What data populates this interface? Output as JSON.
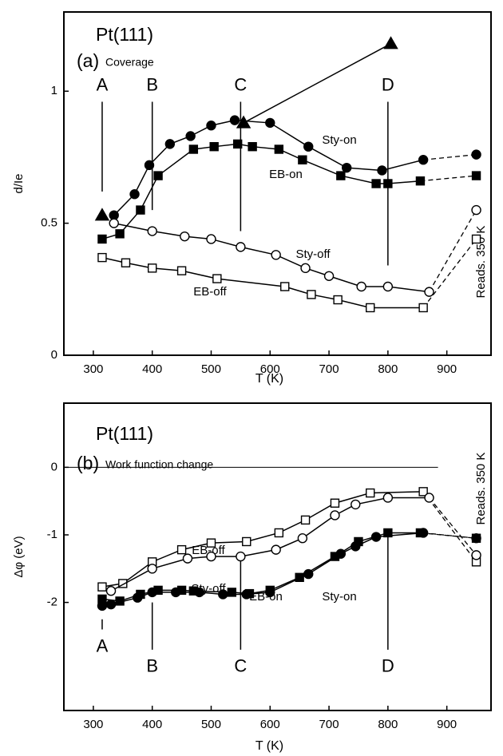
{
  "chart_data": [
    {
      "type": "line",
      "title": "Pt(111)",
      "panel": "(a)",
      "subtitle": "Coverage",
      "x_label": "T (K)",
      "y_label": "d/Ie",
      "note": "Reads. 350 K",
      "color": "#000000",
      "xlim": [
        250,
        975
      ],
      "ylim": [
        0,
        1.3
      ],
      "xticks": [
        300,
        400,
        500,
        600,
        700,
        800,
        900
      ],
      "yticks": [
        0,
        0.5,
        1
      ],
      "series": [
        {
          "name": "Sty-on",
          "marker": "circle-filled",
          "dashed_last": true,
          "x": [
            335,
            370,
            395,
            430,
            465,
            500,
            540,
            600,
            665,
            730,
            790,
            860,
            950
          ],
          "values": [
            0.53,
            0.61,
            0.72,
            0.8,
            0.83,
            0.87,
            0.89,
            0.88,
            0.79,
            0.71,
            0.7,
            0.74,
            0.76
          ]
        },
        {
          "name": "EB-on",
          "marker": "square-filled",
          "dashed_last": true,
          "x": [
            315,
            345,
            380,
            410,
            470,
            505,
            545,
            570,
            615,
            655,
            720,
            780,
            800,
            855,
            950
          ],
          "values": [
            0.44,
            0.46,
            0.55,
            0.68,
            0.78,
            0.79,
            0.8,
            0.79,
            0.78,
            0.74,
            0.68,
            0.65,
            0.65,
            0.66,
            0.68
          ]
        },
        {
          "name": "Sty-off",
          "marker": "circle-open",
          "dashed_last": true,
          "x": [
            335,
            400,
            455,
            500,
            550,
            610,
            660,
            700,
            755,
            800,
            870,
            950
          ],
          "values": [
            0.5,
            0.47,
            0.45,
            0.44,
            0.41,
            0.38,
            0.33,
            0.3,
            0.26,
            0.26,
            0.24,
            0.55
          ]
        },
        {
          "name": "EB-off",
          "marker": "square-open",
          "dashed_last": true,
          "x": [
            315,
            355,
            400,
            450,
            510,
            625,
            670,
            715,
            770,
            860,
            950
          ],
          "values": [
            0.37,
            0.35,
            0.33,
            0.32,
            0.29,
            0.26,
            0.23,
            0.21,
            0.18,
            0.18,
            0.44
          ]
        },
        {
          "marker": "triangle-filled",
          "line": false,
          "x": [
            315
          ],
          "values": [
            0.53
          ]
        },
        {
          "marker": "triangle-filled",
          "line": true,
          "x": [
            555,
            805
          ],
          "values": [
            0.88,
            1.18
          ]
        }
      ],
      "annotations": [
        {
          "label": "A",
          "x": 315,
          "y": [
            0.62,
            0.96
          ]
        },
        {
          "label": "B",
          "x": 400,
          "y": [
            0.55,
            0.96
          ]
        },
        {
          "label": "C",
          "x": 550,
          "y": [
            0.47,
            0.96
          ]
        },
        {
          "label": "D",
          "x": 800,
          "y": [
            0.34,
            0.96
          ]
        }
      ]
    },
    {
      "type": "line",
      "title": "Pt(111)",
      "panel": "(b)",
      "subtitle": "Work function change",
      "x_label": "T (K)",
      "y_label": "Δφ (eV)",
      "note": "Reads. 350 K",
      "color": "#000000",
      "xlim": [
        250,
        975
      ],
      "ylim": [
        -3.6,
        0.95
      ],
      "xticks": [
        300,
        400,
        500,
        600,
        700,
        800,
        900
      ],
      "yticks": [
        -2,
        -1,
        0
      ],
      "hlines": [
        {
          "y": 0,
          "x": [
            250,
            885
          ]
        }
      ],
      "series": [
        {
          "name": "EB-off",
          "marker": "square-open",
          "dashed_last": true,
          "x": [
            315,
            350,
            400,
            450,
            500,
            560,
            615,
            660,
            710,
            770,
            860,
            950
          ],
          "values": [
            -1.77,
            -1.72,
            -1.4,
            -1.22,
            -1.12,
            -1.1,
            -0.97,
            -0.78,
            -0.53,
            -0.38,
            -0.36,
            -1.4
          ]
        },
        {
          "name": "Sty-off",
          "marker": "circle-open",
          "dashed_last": true,
          "x": [
            330,
            400,
            460,
            500,
            550,
            610,
            655,
            710,
            745,
            800,
            870,
            950
          ],
          "values": [
            -1.83,
            -1.5,
            -1.35,
            -1.32,
            -1.32,
            -1.22,
            -1.05,
            -0.71,
            -0.55,
            -0.45,
            -0.45,
            -1.3
          ]
        },
        {
          "name": "Sty-on",
          "marker": "circle-filled",
          "dashed_last": true,
          "x": [
            315,
            330,
            375,
            400,
            440,
            480,
            520,
            560,
            600,
            665,
            720,
            745,
            780,
            860,
            950
          ],
          "values": [
            -2.05,
            -2.03,
            -1.93,
            -1.85,
            -1.85,
            -1.85,
            -1.88,
            -1.88,
            -1.85,
            -1.58,
            -1.28,
            -1.17,
            -1.03,
            -0.97,
            -1.05
          ]
        },
        {
          "name": "EB-on",
          "marker": "square-filled",
          "dashed_last": true,
          "x": [
            315,
            345,
            380,
            410,
            450,
            470,
            535,
            565,
            600,
            650,
            710,
            750,
            800,
            855,
            950
          ],
          "values": [
            -1.95,
            -1.98,
            -1.88,
            -1.82,
            -1.82,
            -1.83,
            -1.85,
            -1.87,
            -1.82,
            -1.63,
            -1.32,
            -1.1,
            -0.97,
            -0.97,
            -1.05
          ]
        }
      ],
      "annotations": [
        {
          "label": "A",
          "x": 315,
          "y": [
            -2.25,
            -2.4
          ]
        },
        {
          "label": "B",
          "x": 400,
          "y": [
            -2.0,
            -2.7
          ]
        },
        {
          "label": "C",
          "x": 550,
          "y": [
            -1.35,
            -2.7
          ]
        },
        {
          "label": "D",
          "x": 800,
          "y": [
            -1.0,
            -2.7
          ]
        }
      ]
    }
  ]
}
